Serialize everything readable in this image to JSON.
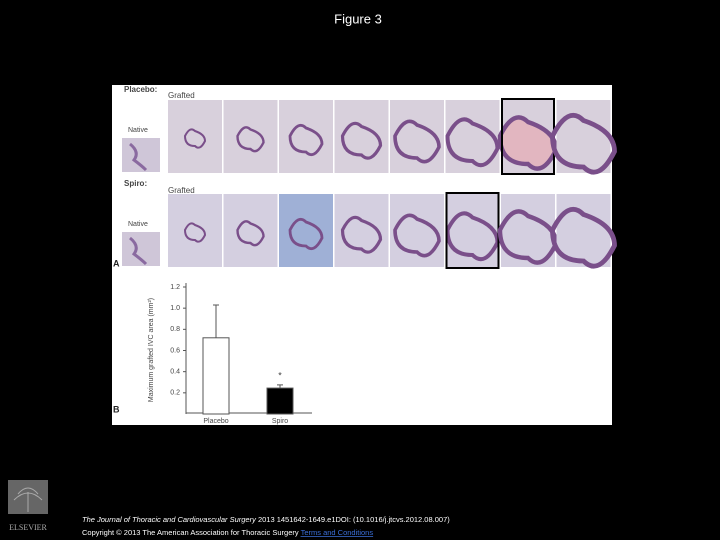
{
  "header": {
    "title": "Figure 3"
  },
  "figure": {
    "panel_a": {
      "label": "A",
      "rows": [
        {
          "group": "Placebo:",
          "grafted": "Grafted",
          "native": "Native"
        },
        {
          "group": "Spiro:",
          "grafted": "Grafted",
          "native": "Native"
        }
      ]
    },
    "panel_b": {
      "label": "B",
      "chart_data": {
        "type": "bar",
        "y_label": "Maximum grafted IVC area (mm²)",
        "categories": [
          "Placebo",
          "Spiro"
        ],
        "values": [
          0.72,
          0.245
        ],
        "errors": [
          0.31,
          0.03
        ],
        "colors": [
          "#ffffff",
          "#000000"
        ],
        "annotations": [
          {
            "category": 1,
            "text": "*"
          }
        ],
        "ylim": [
          0,
          1.2
        ],
        "yticks": [
          0.2,
          0.4,
          0.6,
          0.8,
          {
            "value": 1,
            "label": "1.0"
          },
          1.2
        ]
      }
    }
  },
  "footer": {
    "journal": "The Journal of Thoracic and Cardiovascular Surgery",
    "citation": "2013 1451642-1649.e1DOI: (10.1016/j.jtcvs.2012.08.007)",
    "copyright": "Copyright © 2013 The American Association for Thoracic Surgery",
    "link": "Terms and Conditions",
    "publisher": "ELSEVIER"
  }
}
